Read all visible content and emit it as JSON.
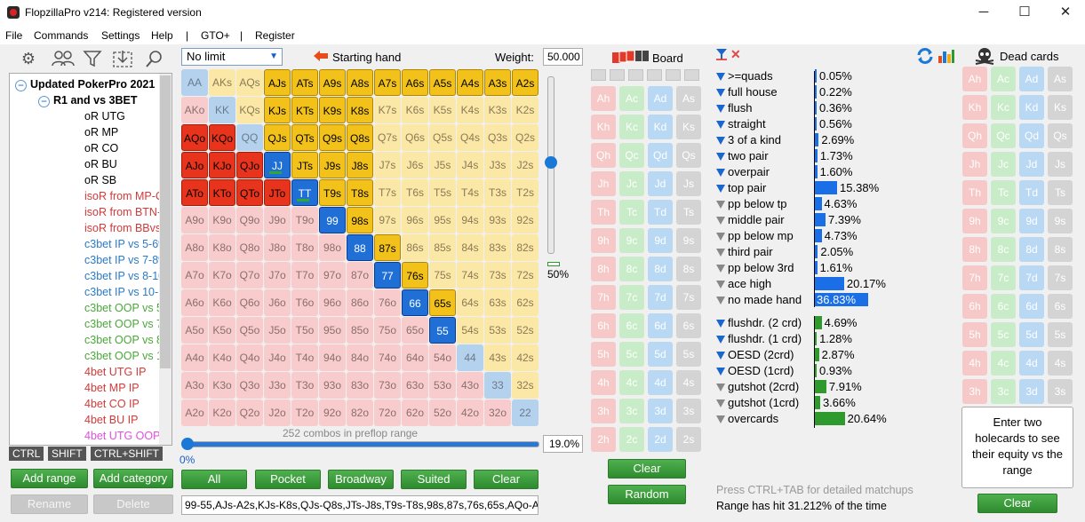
{
  "window": {
    "title": "FlopzillaPro v214: Registered version"
  },
  "menu": [
    "File",
    "Commands",
    "Settings",
    "Help",
    "|",
    "GTO+",
    "|",
    "Register"
  ],
  "toolbar_icons": [
    "gear-icon",
    "users-icon",
    "filter-icon",
    "import-icon",
    "search-icon"
  ],
  "tree": {
    "items": [
      {
        "label": "Updated PokerPro 2021",
        "indent": 0,
        "color": "#000",
        "bold": true,
        "toggle": "−"
      },
      {
        "label": "R1 and vs 3BET",
        "indent": 1,
        "color": "#000",
        "bold": true,
        "toggle": "−"
      },
      {
        "label": "oR UTG",
        "indent": 2,
        "color": "#000"
      },
      {
        "label": "oR MP",
        "indent": 2,
        "color": "#000"
      },
      {
        "label": "oR CO",
        "indent": 2,
        "color": "#000"
      },
      {
        "label": "oR BU",
        "indent": 2,
        "color": "#000"
      },
      {
        "label": "oR SB",
        "indent": 2,
        "color": "#000"
      },
      {
        "label": "isoR from MP-CO",
        "indent": 2,
        "color": "#d23a3a"
      },
      {
        "label": "isoR from BTN-BB",
        "indent": 2,
        "color": "#d23a3a"
      },
      {
        "label": "isoR from BBvsSB",
        "indent": 2,
        "color": "#d23a3a"
      },
      {
        "label": "c3bet IP vs 5-6%",
        "indent": 2,
        "color": "#2a7ac8"
      },
      {
        "label": "c3bet IP vs 7-8%",
        "indent": 2,
        "color": "#2a7ac8"
      },
      {
        "label": "c3bet IP vs 8-10%",
        "indent": 2,
        "color": "#2a7ac8"
      },
      {
        "label": "c3bet IP vs 10-15%",
        "indent": 2,
        "color": "#2a7ac8"
      },
      {
        "label": "c3bet OOP vs 5-6%",
        "indent": 2,
        "color": "#4aa83a"
      },
      {
        "label": "c3bet OOP vs 7-8%",
        "indent": 2,
        "color": "#4aa83a"
      },
      {
        "label": "c3bet OOP vs 8-10%",
        "indent": 2,
        "color": "#4aa83a"
      },
      {
        "label": "c3bet OOP vs 12%",
        "indent": 2,
        "color": "#4aa83a"
      },
      {
        "label": "4bet UTG IP",
        "indent": 2,
        "color": "#d23a3a"
      },
      {
        "label": "4bet MP IP",
        "indent": 2,
        "color": "#d23a3a"
      },
      {
        "label": "4bet CO IP",
        "indent": 2,
        "color": "#d23a3a"
      },
      {
        "label": "4bet BU IP",
        "indent": 2,
        "color": "#d23a3a"
      },
      {
        "label": "4bet UTG OOP",
        "indent": 2,
        "color": "#e050e0"
      }
    ]
  },
  "modifier_tabs": [
    "CTRL",
    "SHIFT",
    "CTRL+SHIFT"
  ],
  "left_buttons": {
    "add_range": "Add range",
    "add_category": "Add category",
    "rename": "Rename",
    "delete": "Delete"
  },
  "range_panel": {
    "limit": "No limit",
    "starting_hand_label": "Starting hand",
    "weight_label": "Weight:",
    "weight_value": "50.000",
    "combos_text": "252 combos in preflop range",
    "pct_left": "0%",
    "pct_right": "19.0%",
    "vslider_pct": "50%",
    "buttons": [
      "All",
      "Pocket",
      "Broadway",
      "Suited",
      "Clear"
    ],
    "range_text": "99-55,AJs-A2s,KJs-K8s,QJs-Q8s,JTs-J8s,T9s-T8s,98s,87s,76s,65s,AQo-ATo,KQo-KTo,QJo-QTo,JTo",
    "ranks": [
      "A",
      "K",
      "Q",
      "J",
      "T",
      "9",
      "8",
      "7",
      "6",
      "5",
      "4",
      "3",
      "2"
    ],
    "selected": [
      "AJs",
      "ATs",
      "A9s",
      "A8s",
      "A7s",
      "A6s",
      "A5s",
      "A4s",
      "A3s",
      "A2s",
      "KJs",
      "KTs",
      "K9s",
      "K8s",
      "QJs",
      "QTs",
      "Q9s",
      "Q8s",
      "JJ",
      "JTs",
      "J9s",
      "J8s",
      "TT",
      "T9s",
      "T8s",
      "99",
      "98s",
      "88",
      "87s",
      "77",
      "76s",
      "66",
      "65s",
      "55",
      "AQo",
      "KQo",
      "AJo",
      "KJo",
      "QJo",
      "ATo",
      "KTo",
      "QTo",
      "JTo"
    ],
    "hit_marks": [
      "JJ",
      "TT"
    ]
  },
  "board": {
    "label": "Board",
    "suits": [
      "h",
      "c",
      "d",
      "s"
    ],
    "ranks": [
      "A",
      "K",
      "Q",
      "J",
      "T",
      "9",
      "8",
      "7",
      "6",
      "5",
      "4",
      "3",
      "2"
    ],
    "clear": "Clear",
    "random": "Random"
  },
  "stats": {
    "made": [
      {
        "label": ">=quads",
        "pct": "0.05%",
        "value": 0.05,
        "filter": "blue"
      },
      {
        "label": "full house",
        "pct": "0.22%",
        "value": 0.22,
        "filter": "blue"
      },
      {
        "label": "flush",
        "pct": "0.36%",
        "value": 0.36,
        "filter": "blue"
      },
      {
        "label": "straight",
        "pct": "0.56%",
        "value": 0.56,
        "filter": "blue"
      },
      {
        "label": "3 of a kind",
        "pct": "2.69%",
        "value": 2.69,
        "filter": "blue"
      },
      {
        "label": "two pair",
        "pct": "1.73%",
        "value": 1.73,
        "filter": "blue"
      },
      {
        "label": "overpair",
        "pct": "1.60%",
        "value": 1.6,
        "filter": "blue"
      },
      {
        "label": "top pair",
        "pct": "15.38%",
        "value": 15.38,
        "filter": "blue"
      },
      {
        "label": "pp below tp",
        "pct": "4.63%",
        "value": 4.63,
        "filter": "grey"
      },
      {
        "label": "middle pair",
        "pct": "7.39%",
        "value": 7.39,
        "filter": "grey"
      },
      {
        "label": "pp below mp",
        "pct": "4.73%",
        "value": 4.73,
        "filter": "grey"
      },
      {
        "label": "third pair",
        "pct": "2.05%",
        "value": 2.05,
        "filter": "grey"
      },
      {
        "label": "pp below 3rd",
        "pct": "1.61%",
        "value": 1.61,
        "filter": "grey"
      },
      {
        "label": "ace high",
        "pct": "20.17%",
        "value": 20.17,
        "filter": "grey"
      },
      {
        "label": "no made hand",
        "pct": "36.83%",
        "value": 36.83,
        "filter": "grey"
      }
    ],
    "draws": [
      {
        "label": "flushdr. (2 crd)",
        "pct": "4.69%",
        "value": 4.69,
        "filter": "blue"
      },
      {
        "label": "flushdr. (1 crd)",
        "pct": "1.28%",
        "value": 1.28,
        "filter": "blue"
      },
      {
        "label": "OESD (2crd)",
        "pct": "2.87%",
        "value": 2.87,
        "filter": "blue"
      },
      {
        "label": "OESD (1crd)",
        "pct": "0.93%",
        "value": 0.93,
        "filter": "blue"
      },
      {
        "label": "gutshot (2crd)",
        "pct": "7.91%",
        "value": 7.91,
        "filter": "grey"
      },
      {
        "label": "gutshot (1crd)",
        "pct": "3.66%",
        "value": 3.66,
        "filter": "grey"
      },
      {
        "label": "overcards",
        "pct": "20.64%",
        "value": 20.64,
        "filter": "grey"
      }
    ],
    "hint": "Press CTRL+TAB for detailed matchups",
    "hit_text": "Range has hit 31.212% of the time",
    "colors": {
      "made": "#1a6ee6",
      "draw": "#2e9a2e"
    }
  },
  "dead_cards": {
    "label": "Dead cards",
    "equity_text": "Enter two holecards to see their equity vs the range",
    "clear": "Clear"
  }
}
